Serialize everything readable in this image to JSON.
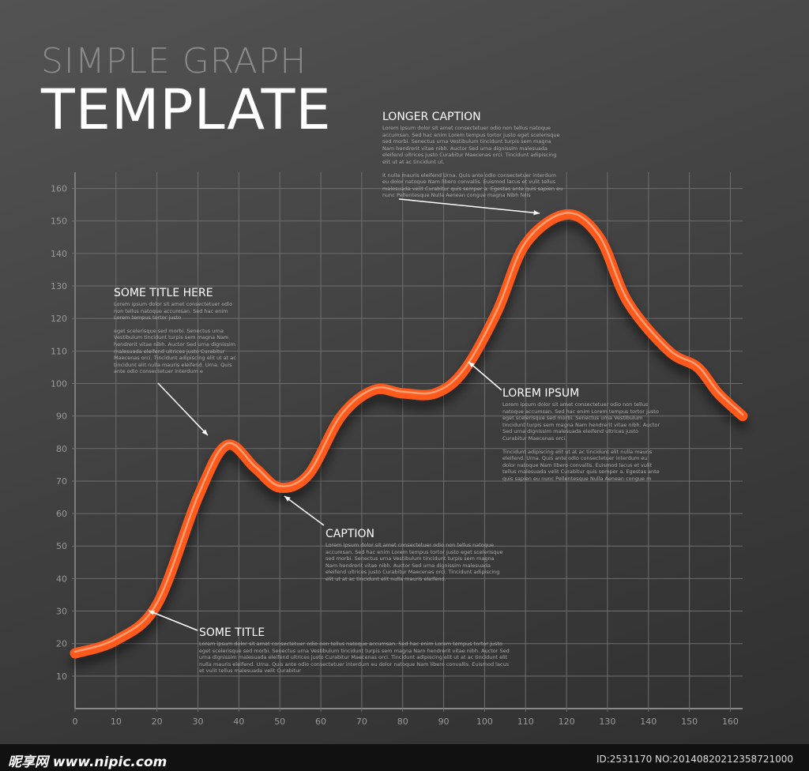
{
  "chart_data": {
    "type": "line",
    "title": "SIMPLE GRAPH",
    "subtitle": "TEMPLATE",
    "x": [
      0,
      10,
      20,
      30,
      37,
      44,
      50,
      57,
      65,
      73,
      80,
      88,
      95,
      103,
      110,
      120,
      128,
      135,
      145,
      152,
      157,
      163
    ],
    "values": [
      17,
      21,
      32,
      65,
      81,
      74,
      68,
      72,
      90,
      98,
      97,
      97,
      104,
      122,
      143,
      152,
      145,
      125,
      110,
      105,
      97,
      90
    ],
    "color": "#ff5a1f",
    "xlim": [
      0,
      163
    ],
    "ylim": [
      0,
      165
    ],
    "xticks": [
      0,
      10,
      20,
      30,
      40,
      50,
      60,
      70,
      80,
      90,
      100,
      110,
      120,
      130,
      140,
      150,
      160
    ],
    "yticks": [
      10,
      20,
      30,
      40,
      50,
      60,
      70,
      80,
      90,
      100,
      110,
      120,
      130,
      140,
      150,
      160
    ],
    "grid": true,
    "annotations": [
      {
        "title": "LONGER CAPTION",
        "text": [
          "Lorem ipsum dolor sit amet consectetuer odio non tellus natoque accumsan. Sed hac enim Lorem tempus tortor justo eget scelerisque sed morbi. Senectus urna Vestibulum tincidunt turpis sem magna Nam hendrerit vitae nibh. Auctor Sed urna dignissim malesuada eleifend ultrices justo Curabitur Maecenas orci. Tincidunt adipiscing elit ut at ac tincidunt ut.",
          "It nulla mauris eleifend Urna. Quis ante odio consectetuer interdum eu dolor natoque Nam libero convallis. Euismod lacus et vulit tellus malesuada velit Curabitur quis semper a. Egestas ante quis sapien eu nunc Pellentesque Nulla Aenean congue magna Nibh felis"
        ]
      },
      {
        "title": "SOME TITLE HERE",
        "text": [
          "Lorem ipsum dolor sit amet consectetuer odio non tellus natoque accumsan. Sed hac enim Lorem tempus tortor justo",
          "eget scelerisque sed morbi. Senectus urna Vestibulum tincidunt turpis sem magna Nam hendrerit vitae nibh. Auctor Sed urna dignissim malesuada eleifend ultrices justo Curabitur Maecenas orci. Tincidunt adipiscing elit ut at ac tincidunt elit nulla mauris eleifend. Urna. Quis ante odio consectetuer interdum e"
        ]
      },
      {
        "title": "LOREM IPSUM",
        "text": [
          "Lorem ipsum dolor sit amet consectetuer odio non tellus natoque accumsan. Sed hac enim Lorem tempus tortor justo eget scelerisque sed morbi. Senectus urna Vestibulum tincidunt turpis sem magna Nam hendrerit vitae nibh. Auctor Sed urna dignissim malesuada eleifend ultrices justo Curabitur Maecenas orci.",
          "Tincidunt adipiscing elit ut at ac tincidunt elit nulla mauris eleifend. Urna. Quis ante odio consectetuer interdum eu dolor natoque Nam libero convallis. Euismod lacus et vulit tellus malesuada velit Curabitur quis semper a. Egestas ante quis sapien eu nunc Pellentesque Nulla Aenean congue m"
        ]
      },
      {
        "title": "CAPTION",
        "text": [
          "Lorem ipsum dolor sit amet consectetuer odio non tellus natoque accumsan. Sed hac enim Lorem tempus tortor justo eget scelerisque sed morbi. Senectus urna Vestibulum tincidunt turpis sem magna Nam hendrerit vitae nibh. Auctor Sed urna dignissim malesuada eleifend ultrices justo Curabitur Maecenas orci. Tincidunt adipiscing elit ut at ac tincidunt elit nulla mauris eleifend."
        ]
      },
      {
        "title": "SOME TITLE",
        "text": [
          "Lorem ipsum dolor sit amet consectetuer odio non tellus natoque accumsan. Sed hac enim Lorem tempus tortor justo eget scelerisque sed morbi. Senectus urna Vestibulum tincidunt turpis sem magna Nam hendrerit vitae nibh. Auctor Sed urna dignissim malesuada eleifend ultrices justo Curabitur Maecenas orci. Tincidunt adipiscing elit ut at ac tincidunt elit nulla mauris eleifend. Urna. Quis ante odio consectetuer interdum eu dolor natoque Nam libero convallis. Euismod lacus et vulit tellus malesuada velit Curabitur"
        ]
      }
    ]
  },
  "watermark": {
    "site": "昵享网 www.nipic.com",
    "id": "ID:2531170 NO:20140820212358721000"
  }
}
